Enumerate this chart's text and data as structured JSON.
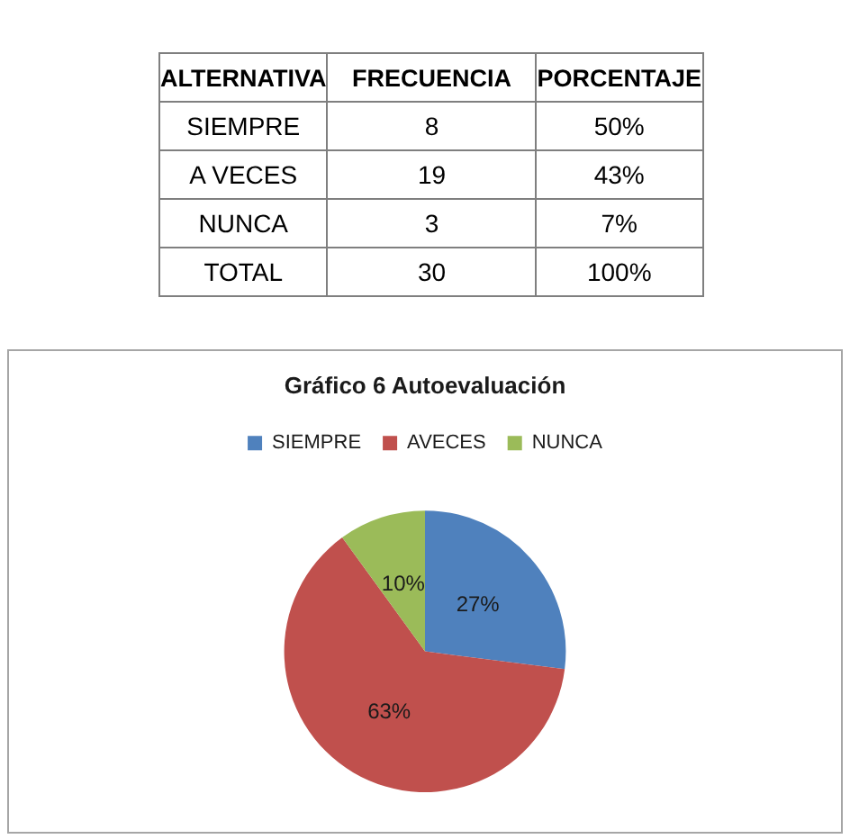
{
  "chart_data": [
    {
      "type": "other",
      "categories": [
        "ALTERNATIVA",
        "FRECUENCIA",
        "PORCENTAJE"
      ],
      "annotations": [
        "SIEMPRE",
        "8",
        "50%",
        "A VECES",
        "19",
        "43%",
        "NUNCA",
        "3",
        "7%",
        "TOTAL",
        "30",
        "100%"
      ]
    },
    {
      "type": "pie",
      "title": "Gráfico 6 Autoevaluación",
      "categories": [
        "SIEMPRE",
        "AVECES",
        "NUNCA"
      ],
      "values": [
        27,
        63,
        10
      ],
      "colors": [
        "#4f81bd",
        "#c0504d",
        "#9bbb59"
      ],
      "value_labels": [
        "27%",
        "63%",
        "10%"
      ],
      "legend": "top"
    }
  ]
}
